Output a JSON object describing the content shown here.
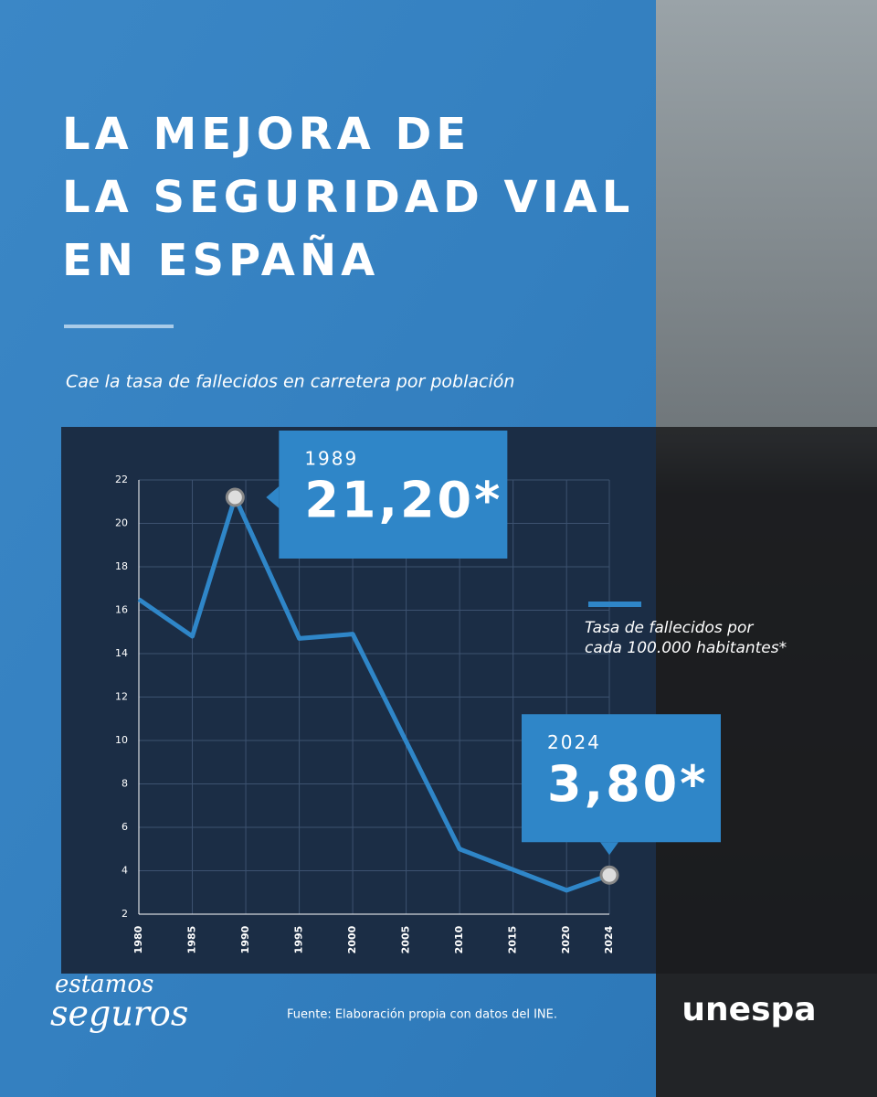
{
  "header": {
    "title": [
      "LA MEJORA DE",
      "LA SEGURIDAD VIAL",
      "EN ESPAÑA"
    ],
    "subtitle": "Cae la tasa de fallecidos en carretera por población"
  },
  "chart_data": {
    "type": "line",
    "x": [
      1980,
      1985,
      1989,
      1995,
      2000,
      2010,
      2020,
      2024
    ],
    "series": [
      {
        "name": "Tasa de fallecidos por cada 100.000 habitantes*",
        "color": "#2f86c8",
        "values": [
          16.5,
          14.8,
          21.2,
          14.7,
          14.9,
          5.0,
          3.1,
          3.8
        ],
        "value_labels": [
          null,
          null,
          "21,20*",
          null,
          null,
          null,
          null,
          "3,80*"
        ]
      }
    ],
    "xlim": [
      1980,
      2024
    ],
    "xticks": [
      1980,
      1985,
      1990,
      1995,
      2000,
      2005,
      2010,
      2015,
      2020,
      2024
    ],
    "ylim": [
      2,
      22
    ],
    "yticks": [
      2,
      4,
      6,
      8,
      10,
      12,
      14,
      16,
      18,
      20,
      22
    ],
    "grid": true
  },
  "footer": {
    "source": "Fuente: Elaboración propia con datos del INE.",
    "brand_left": [
      "estamos",
      "seguros"
    ],
    "brand_right": "unespa"
  }
}
